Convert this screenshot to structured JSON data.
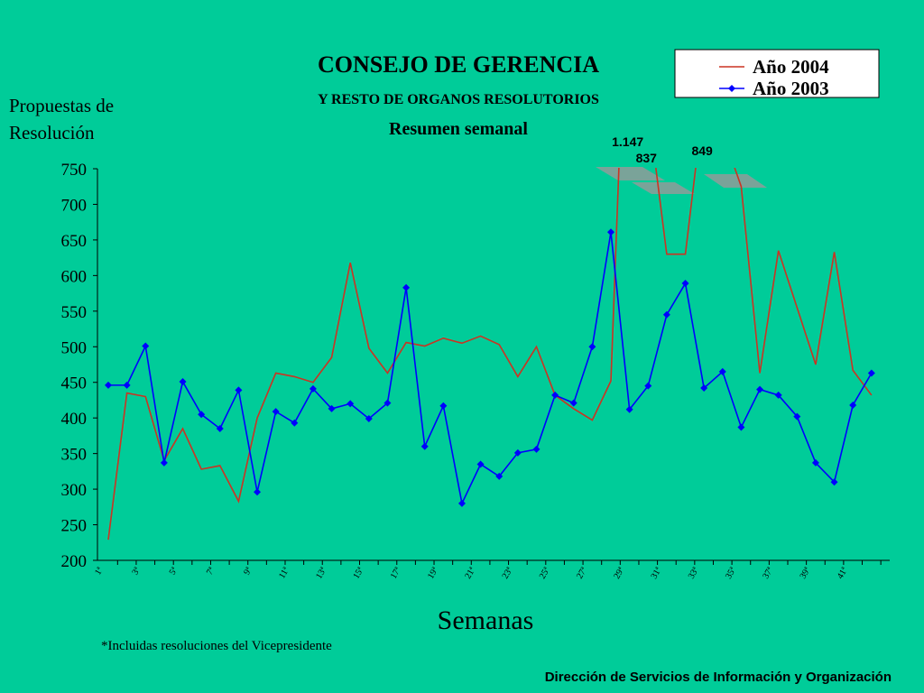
{
  "chart_data": {
    "type": "line",
    "title": "CONSEJO DE GERENCIA",
    "subtitle": "Y RESTO DE ORGANOS RESOLUTORIOS",
    "subtitle2": "Resumen semanal",
    "y_label": [
      "Propuestas de",
      "Resolución"
    ],
    "x_label": "Semanas",
    "footnote": "*Incluidas resoluciones del Vicepresidente",
    "footer": "Dirección de Servicios de  Información y Organización",
    "categories": [
      "1ª",
      null,
      "3ª",
      null,
      "5ª",
      null,
      "7ª",
      null,
      "9ª",
      null,
      "11ª",
      null,
      "13ª",
      null,
      "15ª",
      null,
      "17ª",
      null,
      "19ª",
      null,
      "21ª",
      null,
      "23ª",
      null,
      "25ª",
      null,
      "27ª",
      null,
      "29ª",
      null,
      "31ª",
      null,
      "33ª",
      null,
      "35ª",
      null,
      "37ª",
      null,
      "39ª",
      null,
      "41ª",
      null
    ],
    "series": [
      {
        "name": "Año 2004",
        "color": "#cc3322",
        "marker": false,
        "values": [
          229,
          435,
          430,
          340,
          385,
          328,
          333,
          283,
          400,
          463,
          458,
          450,
          485,
          618,
          498,
          463,
          506,
          501,
          512,
          505,
          515,
          503,
          458,
          500,
          432,
          413,
          397,
          452,
          1147,
          837,
          630,
          630,
          849,
          800,
          725,
          463,
          635,
          555,
          475,
          633,
          467,
          432
        ],
        "value_labels": [
          null,
          null,
          null,
          null,
          null,
          null,
          null,
          null,
          null,
          null,
          null,
          null,
          null,
          null,
          null,
          null,
          null,
          null,
          null,
          null,
          null,
          null,
          null,
          null,
          null,
          null,
          null,
          null,
          "1.147",
          "837",
          null,
          null,
          "849",
          null,
          null,
          null,
          null,
          null,
          null,
          null,
          null,
          null
        ]
      },
      {
        "name": "Año 2003",
        "color": "#0000ff",
        "marker": true,
        "values": [
          446,
          446,
          501,
          337,
          451,
          405,
          385,
          439,
          296,
          409,
          393,
          441,
          413,
          420,
          399,
          421,
          583,
          360,
          417,
          280,
          335,
          318,
          351,
          356,
          432,
          421,
          500,
          661,
          412,
          445,
          545,
          589,
          442,
          465,
          387,
          440,
          432,
          402,
          337,
          310,
          418,
          463
        ]
      }
    ],
    "ylim": [
      200,
      750
    ],
    "yticks": [
      200,
      250,
      300,
      350,
      400,
      450,
      500,
      550,
      600,
      650,
      700,
      750
    ],
    "grid": false,
    "legend": "top-right"
  }
}
